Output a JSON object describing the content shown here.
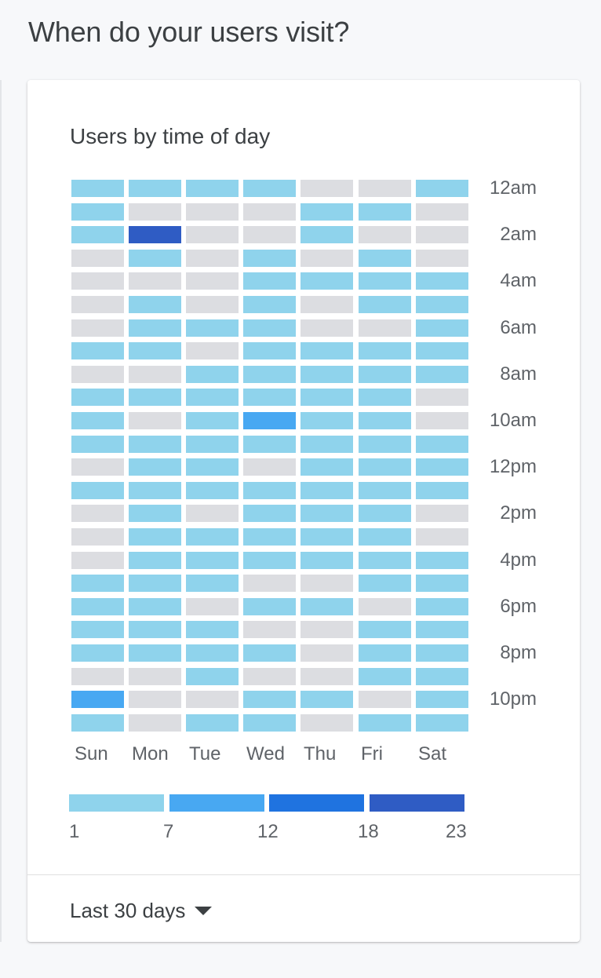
{
  "page": {
    "section_title": "When do your users visit?"
  },
  "card": {
    "title": "Users by time of day",
    "date_range_label": "Last 30 days"
  },
  "colors": {
    "empty": "#dcdde1",
    "level1": "#8fd3ec",
    "level2": "#48a8f2",
    "level3": "#1f73e0",
    "level4": "#2f5cc4"
  },
  "chart_data": {
    "type": "heatmap",
    "title": "Users by time of day",
    "columns": [
      "Sun",
      "Mon",
      "Tue",
      "Wed",
      "Thu",
      "Fri",
      "Sat"
    ],
    "hour_labels": [
      "12am",
      "",
      "2am",
      "",
      "4am",
      "",
      "6am",
      "",
      "8am",
      "",
      "10am",
      "",
      "12pm",
      "",
      "2pm",
      "",
      "4pm",
      "",
      "6pm",
      "",
      "8pm",
      "",
      "10pm",
      ""
    ],
    "legend": {
      "ticks": [
        "1",
        "7",
        "12",
        "18",
        "23"
      ]
    },
    "levels": [
      [
        1,
        1,
        1,
        1,
        0,
        0,
        1
      ],
      [
        1,
        0,
        0,
        0,
        1,
        1,
        0
      ],
      [
        1,
        4,
        0,
        0,
        1,
        0,
        0
      ],
      [
        0,
        1,
        0,
        1,
        0,
        1,
        0
      ],
      [
        0,
        0,
        0,
        1,
        1,
        1,
        1
      ],
      [
        0,
        1,
        0,
        1,
        0,
        1,
        1
      ],
      [
        0,
        1,
        1,
        1,
        0,
        0,
        1
      ],
      [
        1,
        1,
        0,
        1,
        1,
        1,
        1
      ],
      [
        0,
        0,
        1,
        1,
        1,
        1,
        1
      ],
      [
        1,
        1,
        1,
        1,
        1,
        1,
        0
      ],
      [
        1,
        0,
        1,
        2,
        1,
        1,
        0
      ],
      [
        1,
        1,
        1,
        1,
        1,
        1,
        1
      ],
      [
        0,
        1,
        1,
        0,
        1,
        1,
        1
      ],
      [
        1,
        1,
        1,
        1,
        1,
        1,
        1
      ],
      [
        0,
        1,
        0,
        1,
        1,
        1,
        0
      ],
      [
        0,
        1,
        1,
        1,
        1,
        1,
        0
      ],
      [
        0,
        1,
        1,
        1,
        1,
        1,
        1
      ],
      [
        1,
        1,
        1,
        0,
        0,
        1,
        1
      ],
      [
        1,
        1,
        0,
        1,
        1,
        0,
        1
      ],
      [
        1,
        1,
        1,
        0,
        0,
        1,
        1
      ],
      [
        1,
        1,
        1,
        1,
        0,
        1,
        1
      ],
      [
        0,
        0,
        1,
        0,
        0,
        1,
        1
      ],
      [
        2,
        0,
        0,
        1,
        1,
        0,
        1
      ],
      [
        1,
        0,
        1,
        1,
        0,
        1,
        1
      ]
    ]
  }
}
